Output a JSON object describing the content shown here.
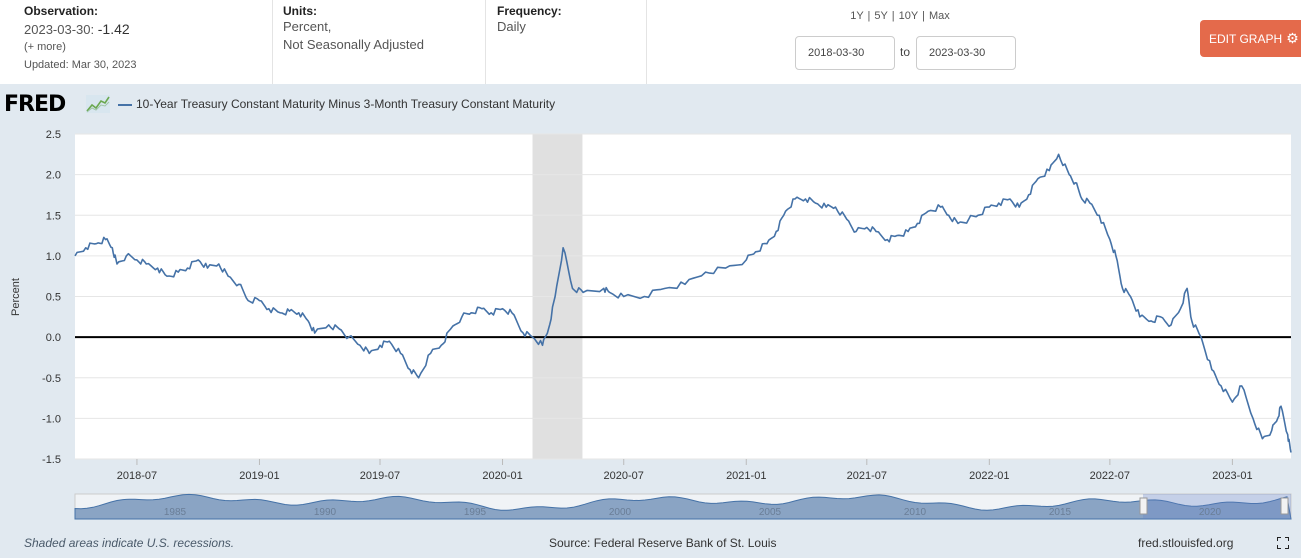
{
  "observation": {
    "label": "Observation:",
    "date": "2023-03-30:",
    "value": "-1.42",
    "more": "(+ more)",
    "updated": "Updated: Mar 30, 2023"
  },
  "units": {
    "label": "Units:",
    "line1": "Percent,",
    "line2": "Not Seasonally Adjusted"
  },
  "frequency": {
    "label": "Frequency:",
    "value": "Daily"
  },
  "range_links": "1Y | 5Y | 10Y | Max",
  "date_from": "2018-03-30",
  "date_to": "2023-03-30",
  "to_label": "to",
  "edit_button": "EDIT GRAPH",
  "logo": "FRED",
  "icons": {
    "settings": "gear-icon",
    "logo": "chart-line-icon",
    "fullscreen": "fullscreen-icon"
  },
  "colors": {
    "series": "#4572a7",
    "recession": "#e0e0e0",
    "button": "#e46a4b",
    "panel": "#e1e9f0"
  },
  "footer": {
    "recessions": "Shaded areas indicate U.S. recessions.",
    "source": "Source: Federal Reserve Bank of St. Louis",
    "site": "fred.stlouisfed.org"
  },
  "navigator_labels": [
    "1985",
    "1990",
    "1995",
    "2000",
    "2005",
    "2010",
    "2015",
    "2020"
  ],
  "chart_data": {
    "type": "line",
    "title": "",
    "ylabel": "Percent",
    "ylim": [
      -1.5,
      2.5
    ],
    "yticks": [
      -1.5,
      -1.0,
      -0.5,
      0.0,
      0.5,
      1.0,
      1.5,
      2.0,
      2.5
    ],
    "xlim": [
      "2018-03-30",
      "2023-03-30"
    ],
    "xticks": [
      "2018-07",
      "2019-01",
      "2019-07",
      "2020-01",
      "2020-07",
      "2021-01",
      "2021-07",
      "2022-01",
      "2022-07",
      "2023-01"
    ],
    "legend": "10-Year Treasury Constant Maturity Minus 3-Month Treasury Constant Maturity",
    "recession": {
      "start": "2020-02-15",
      "end": "2020-04-30"
    },
    "series": [
      {
        "name": "10-Year Treasury Constant Maturity Minus 3-Month Treasury Constant Maturity",
        "color": "#4572a7",
        "x": [
          "2018-03-30",
          "2018-04-15",
          "2018-05-01",
          "2018-05-15",
          "2018-05-25",
          "2018-06-01",
          "2018-06-15",
          "2018-07-01",
          "2018-07-15",
          "2018-08-01",
          "2018-08-15",
          "2018-09-01",
          "2018-09-15",
          "2018-10-01",
          "2018-10-15",
          "2018-11-01",
          "2018-11-15",
          "2018-12-01",
          "2018-12-15",
          "2019-01-01",
          "2019-01-15",
          "2019-02-01",
          "2019-02-15",
          "2019-03-01",
          "2019-03-15",
          "2019-03-25",
          "2019-04-15",
          "2019-05-01",
          "2019-05-15",
          "2019-06-01",
          "2019-06-15",
          "2019-07-01",
          "2019-07-15",
          "2019-08-01",
          "2019-08-15",
          "2019-08-28",
          "2019-09-15",
          "2019-10-01",
          "2019-10-15",
          "2019-11-01",
          "2019-11-15",
          "2019-12-01",
          "2019-12-15",
          "2020-01-01",
          "2020-01-15",
          "2020-02-01",
          "2020-02-15",
          "2020-03-01",
          "2020-03-10",
          "2020-03-20",
          "2020-04-01",
          "2020-04-15",
          "2020-05-01",
          "2020-06-01",
          "2020-06-10",
          "2020-07-01",
          "2020-08-01",
          "2020-09-01",
          "2020-10-01",
          "2020-11-01",
          "2020-12-01",
          "2021-01-01",
          "2021-01-15",
          "2021-02-01",
          "2021-02-15",
          "2021-03-01",
          "2021-03-15",
          "2021-03-31",
          "2021-04-15",
          "2021-05-01",
          "2021-05-15",
          "2021-06-01",
          "2021-06-15",
          "2021-07-01",
          "2021-07-15",
          "2021-08-01",
          "2021-08-15",
          "2021-09-01",
          "2021-09-15",
          "2021-10-01",
          "2021-10-20",
          "2021-11-01",
          "2021-11-15",
          "2021-12-01",
          "2021-12-15",
          "2022-01-01",
          "2022-01-15",
          "2022-02-01",
          "2022-02-15",
          "2022-03-01",
          "2022-03-15",
          "2022-04-01",
          "2022-04-15",
          "2022-05-01",
          "2022-05-10",
          "2022-05-20",
          "2022-06-01",
          "2022-06-15",
          "2022-07-01",
          "2022-07-10",
          "2022-07-20",
          "2022-08-01",
          "2022-08-15",
          "2022-09-01",
          "2022-09-15",
          "2022-10-01",
          "2022-10-15",
          "2022-10-25",
          "2022-11-01",
          "2022-11-15",
          "2022-12-01",
          "2022-12-15",
          "2023-01-01",
          "2023-01-15",
          "2023-02-01",
          "2023-02-15",
          "2023-03-01",
          "2023-03-10",
          "2023-03-15",
          "2023-03-25",
          "2023-03-30"
        ],
        "y": [
          1.0,
          1.1,
          1.15,
          1.2,
          1.1,
          0.9,
          1.0,
          0.95,
          0.9,
          0.85,
          0.75,
          0.8,
          0.85,
          0.95,
          0.85,
          0.9,
          0.75,
          0.65,
          0.45,
          0.45,
          0.35,
          0.3,
          0.32,
          0.3,
          0.2,
          0.05,
          0.15,
          0.1,
          0.0,
          -0.1,
          -0.2,
          -0.1,
          -0.05,
          -0.2,
          -0.4,
          -0.5,
          -0.2,
          -0.1,
          0.1,
          0.25,
          0.3,
          0.35,
          0.3,
          0.35,
          0.3,
          0.05,
          0.0,
          -0.1,
          0.1,
          0.5,
          1.1,
          0.6,
          0.55,
          0.6,
          0.55,
          0.5,
          0.5,
          0.6,
          0.65,
          0.8,
          0.85,
          0.95,
          1.05,
          1.15,
          1.3,
          1.55,
          1.7,
          1.7,
          1.65,
          1.6,
          1.6,
          1.45,
          1.3,
          1.35,
          1.3,
          1.2,
          1.25,
          1.3,
          1.4,
          1.55,
          1.6,
          1.5,
          1.4,
          1.45,
          1.5,
          1.6,
          1.65,
          1.7,
          1.6,
          1.75,
          1.95,
          2.05,
          2.25,
          2.0,
          1.9,
          1.7,
          1.65,
          1.5,
          1.2,
          1.0,
          0.6,
          0.5,
          0.25,
          0.2,
          0.25,
          0.15,
          0.35,
          0.6,
          0.2,
          0.0,
          -0.4,
          -0.6,
          -0.8,
          -0.6,
          -1.0,
          -1.25,
          -1.15,
          -1.0,
          -0.85,
          -1.2,
          -1.42
        ]
      }
    ]
  }
}
